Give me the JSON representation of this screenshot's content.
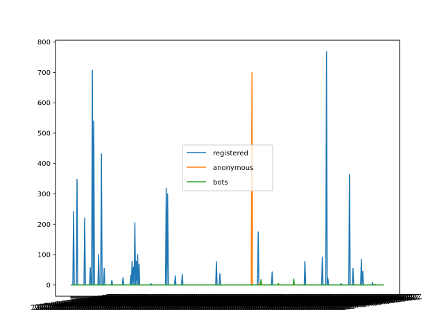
{
  "chart_data": {
    "type": "line",
    "title": "",
    "xlabel": "",
    "ylabel": "",
    "ylim": [
      -37,
      806
    ],
    "yticks": [
      0,
      100,
      200,
      300,
      400,
      500,
      600,
      700,
      800
    ],
    "x_tick_labels_overlapping": true,
    "legend_position": "center",
    "grid": false,
    "series": [
      {
        "name": "registered",
        "color": "#1f77b4",
        "peaks": [
          [
            4,
            242
          ],
          [
            9,
            348
          ],
          [
            20,
            221
          ],
          [
            28,
            57
          ],
          [
            31,
            707
          ],
          [
            33,
            540
          ],
          [
            40,
            100
          ],
          [
            44,
            432
          ],
          [
            48,
            55
          ],
          [
            59,
            15
          ],
          [
            75,
            24
          ],
          [
            86,
            32
          ],
          [
            88,
            78
          ],
          [
            90,
            58
          ],
          [
            92,
            205
          ],
          [
            94,
            78
          ],
          [
            96,
            100
          ],
          [
            98,
            68
          ],
          [
            115,
            5
          ],
          [
            137,
            318
          ],
          [
            139,
            300
          ],
          [
            150,
            30
          ],
          [
            160,
            35
          ],
          [
            209,
            77
          ],
          [
            214,
            37
          ],
          [
            269,
            175
          ],
          [
            289,
            43
          ],
          [
            336,
            78
          ],
          [
            361,
            92
          ],
          [
            367,
            768
          ],
          [
            369,
            22
          ],
          [
            388,
            5
          ],
          [
            400,
            363
          ],
          [
            405,
            55
          ],
          [
            417,
            85
          ],
          [
            419,
            45
          ],
          [
            433,
            8
          ]
        ]
      },
      {
        "name": "anonymous",
        "color": "#ff7f0e",
        "peaks": [
          [
            260,
            700
          ],
          [
            270,
            5
          ]
        ]
      },
      {
        "name": "bots",
        "color": "#2ca02c",
        "peaks": [
          [
            273,
            18
          ],
          [
            298,
            5
          ],
          [
            320,
            20
          ],
          [
            437,
            3
          ]
        ]
      }
    ],
    "x_count": 450
  }
}
